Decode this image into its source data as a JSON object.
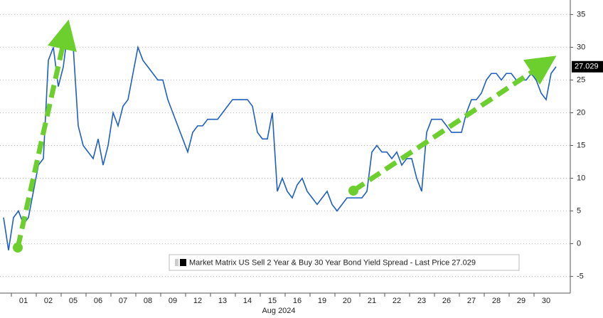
{
  "chart_data": {
    "type": "line",
    "x_axis_label": "Aug 2024",
    "categories": [
      null,
      null,
      null,
      null,
      "01",
      null,
      null,
      null,
      null,
      "02",
      null,
      null,
      null,
      null,
      "05",
      null,
      null,
      null,
      null,
      "06",
      null,
      null,
      null,
      null,
      "07",
      null,
      null,
      null,
      null,
      "08",
      null,
      null,
      null,
      null,
      "09",
      null,
      null,
      null,
      null,
      "12",
      null,
      null,
      null,
      null,
      "13",
      null,
      null,
      null,
      null,
      "14",
      null,
      null,
      null,
      null,
      "15",
      null,
      null,
      null,
      null,
      "16",
      null,
      null,
      null,
      null,
      "19",
      null,
      null,
      null,
      null,
      "20",
      null,
      null,
      null,
      null,
      "21",
      null,
      null,
      null,
      null,
      "22",
      null,
      null,
      null,
      null,
      "23",
      null,
      null,
      null,
      null,
      "26",
      null,
      null,
      null,
      null,
      "27",
      null,
      null,
      null,
      null,
      "28",
      null,
      null,
      null,
      null,
      "29",
      null,
      null,
      null,
      null,
      "30",
      null,
      null
    ],
    "series": [
      {
        "name": "Market Matrix US Sell 2 Year & Buy 30 Year Bond Yield Spread - Last Price 27.029",
        "color": "#1f5fbf",
        "values": [
          4,
          -1,
          4,
          5,
          3,
          4,
          8,
          12,
          13,
          28,
          30,
          24,
          27,
          33,
          30,
          18,
          15,
          14,
          13,
          16,
          12,
          15,
          20,
          18,
          21,
          22,
          26,
          30,
          28,
          27,
          26,
          25,
          25,
          22,
          20,
          18,
          16,
          14,
          17,
          18,
          18,
          19,
          19,
          19,
          20,
          21,
          22,
          22,
          22,
          22,
          21,
          17,
          16,
          16,
          20,
          8,
          10,
          8,
          7,
          9,
          10,
          8,
          7,
          6,
          7,
          8,
          6,
          5,
          6,
          7,
          7,
          7,
          7,
          8,
          14,
          15,
          14,
          14,
          13,
          14,
          12,
          13,
          13,
          10,
          8,
          17,
          19,
          19,
          19,
          18,
          17,
          17,
          17,
          20,
          22,
          22,
          23,
          25,
          26,
          26,
          25,
          26,
          26,
          25,
          25,
          25,
          26,
          25,
          23,
          22,
          26,
          27.029
        ]
      }
    ],
    "ylim": [
      -7,
      37
    ],
    "yticks": [
      -5,
      0,
      5,
      10,
      15,
      20,
      25,
      30,
      35
    ],
    "grid": true
  }
}
